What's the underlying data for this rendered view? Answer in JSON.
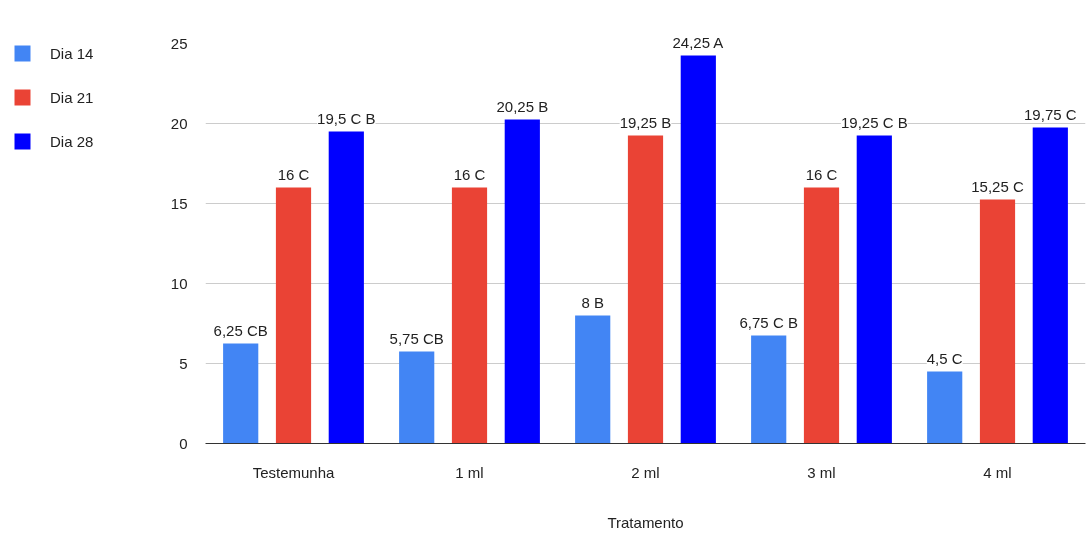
{
  "chart_data": {
    "type": "bar",
    "xlabel": "Tratamento",
    "categories": [
      "Testemunha",
      "1 ml",
      "2 ml",
      "3 ml",
      "4 ml"
    ],
    "series": [
      {
        "name": "Dia 14",
        "color": "#4285f4",
        "values": [
          6.25,
          5.75,
          8,
          6.75,
          4.5
        ],
        "value_labels": [
          "6,25 CB",
          "5,75 CB",
          "8 B",
          "6,75 C B",
          "4,5 C"
        ]
      },
      {
        "name": "Dia 21",
        "color": "#ea4335",
        "values": [
          16,
          16,
          19.25,
          16,
          15.25
        ],
        "value_labels": [
          "16 C",
          "16 C",
          "19,25 B",
          "16 C",
          "15,25 C"
        ]
      },
      {
        "name": "Dia 28",
        "color": "#0000ff",
        "values": [
          19.5,
          20.25,
          24.25,
          19.25,
          19.75
        ],
        "value_labels": [
          "19,5 C B",
          "20,25 B",
          "24,25 A",
          "19,25 C B",
          "19,75 C"
        ]
      }
    ],
    "ylim": [
      0,
      25
    ],
    "yticks": [
      0,
      5,
      10,
      15,
      20,
      25
    ],
    "grid": "y",
    "legend": "top left"
  }
}
